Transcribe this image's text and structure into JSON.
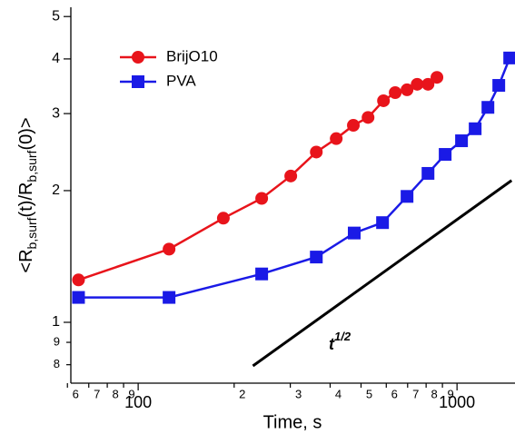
{
  "chart_data": {
    "type": "line",
    "xlabel": "Time, s",
    "ylabel": [
      {
        "text": "<R"
      },
      {
        "text": "b,surf",
        "sub": true
      },
      {
        "text": "(t)/R"
      },
      {
        "text": "b,surf",
        "sub": true
      },
      {
        "text": "(0)>"
      }
    ],
    "xscale": "log",
    "yscale": "log",
    "xlim": [
      61.5,
      1520
    ],
    "ylim": [
      0.726,
      5.25
    ],
    "xticks": [
      {
        "value": 60,
        "label": "6"
      },
      {
        "value": 70,
        "label": "7"
      },
      {
        "value": 80,
        "label": "8"
      },
      {
        "value": 90,
        "label": "9"
      },
      100,
      {
        "value": 200,
        "label": "2"
      },
      {
        "value": 300,
        "label": "3"
      },
      {
        "value": 400,
        "label": "4"
      },
      {
        "value": 500,
        "label": "5"
      },
      {
        "value": 600,
        "label": "6"
      },
      {
        "value": 700,
        "label": "7"
      },
      {
        "value": 800,
        "label": "8"
      },
      {
        "value": 900,
        "label": "9"
      },
      1000
    ],
    "yticks": [
      {
        "value": 0.8,
        "label": "8"
      },
      {
        "value": 0.9,
        "label": "9"
      },
      1,
      2,
      3,
      4,
      5
    ],
    "legend": "top-left",
    "series": [
      {
        "name": "BrijO10",
        "color": "#e8141b",
        "marker": "circle",
        "x": [
          65,
          125,
          185,
          244,
          301,
          362,
          418,
          473,
          526,
          588,
          640,
          697,
          750,
          811,
          865
        ],
        "values": [
          1.25,
          1.47,
          1.73,
          1.92,
          2.16,
          2.45,
          2.63,
          2.82,
          2.94,
          3.21,
          3.35,
          3.4,
          3.5,
          3.5,
          3.63
        ]
      },
      {
        "name": "PVA",
        "color": "#1a1ae6",
        "marker": "square",
        "x": [
          65,
          125,
          244,
          362,
          476,
          584,
          697,
          811,
          918,
          1033,
          1140,
          1250,
          1352,
          1463
        ],
        "values": [
          1.14,
          1.14,
          1.29,
          1.41,
          1.6,
          1.69,
          1.94,
          2.19,
          2.42,
          2.6,
          2.77,
          3.1,
          3.48,
          4.02
        ]
      }
    ],
    "reference_line": {
      "color": "#000000",
      "x": [
        229,
        1483
      ],
      "values": [
        0.795,
        2.11
      ]
    },
    "annotation": {
      "text": "t",
      "superscript": "1/2"
    }
  }
}
